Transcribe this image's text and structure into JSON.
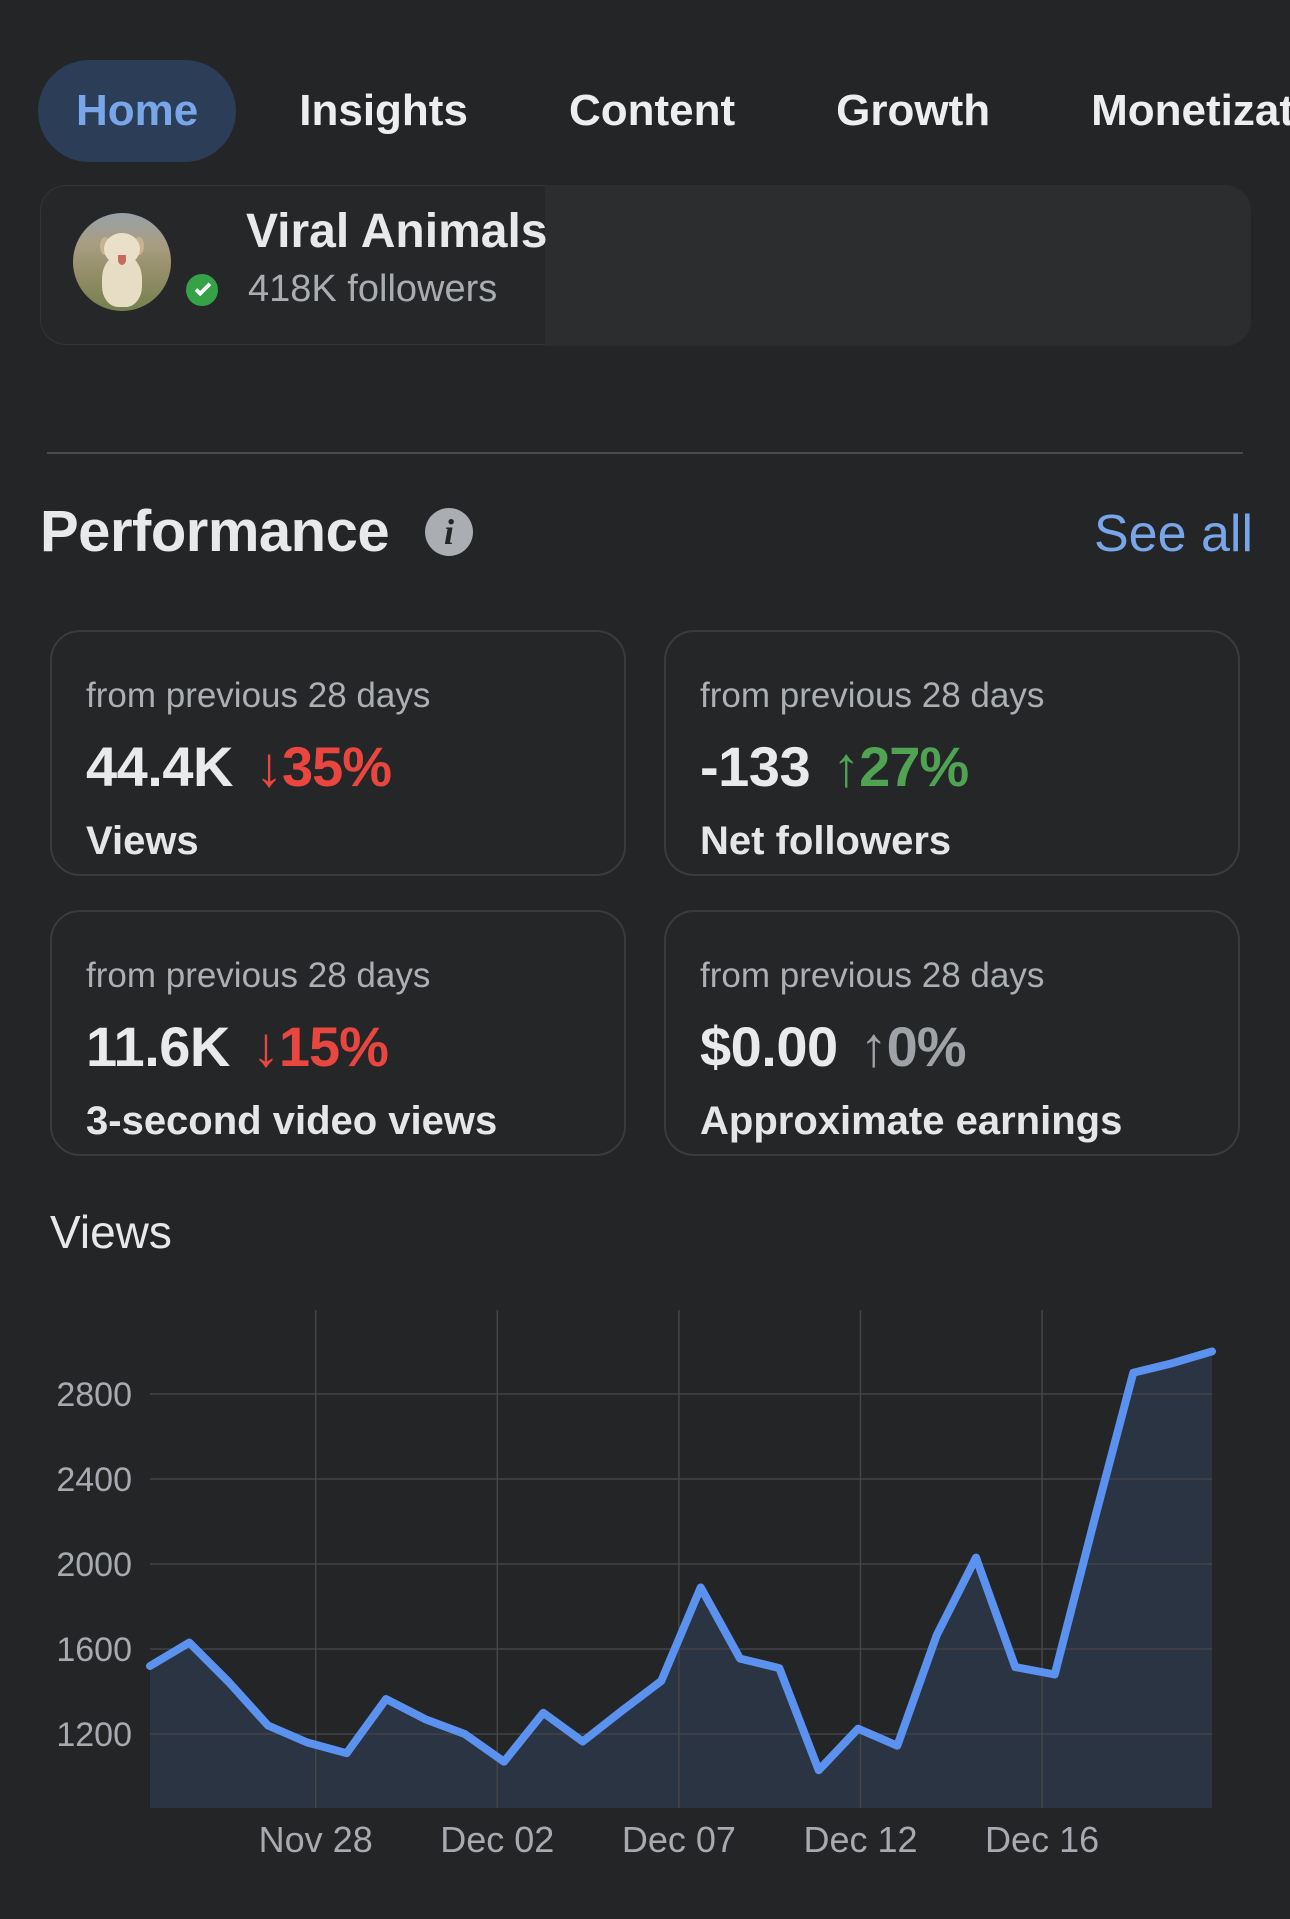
{
  "nav": {
    "tabs": [
      {
        "label": "Home",
        "active": true
      },
      {
        "label": "Insights",
        "active": false
      },
      {
        "label": "Content",
        "active": false
      },
      {
        "label": "Growth",
        "active": false
      },
      {
        "label": "Monetization",
        "active": false
      }
    ]
  },
  "profile": {
    "name": "Viral Animals",
    "followers": "418K followers",
    "avatar": "puppy-photo",
    "badge": "green-check"
  },
  "performance": {
    "title": "Performance",
    "info_icon": "i",
    "see_all": "See all",
    "cards": [
      {
        "period": "from previous 28 days",
        "value": "44.4K",
        "delta": "↓35%",
        "delta_dir": "down",
        "label": "Views"
      },
      {
        "period": "from previous 28 days",
        "value": "-133",
        "delta": "↑27%",
        "delta_dir": "up",
        "label": "Net followers"
      },
      {
        "period": "from previous 28 days",
        "value": "11.6K",
        "delta": "↓15%",
        "delta_dir": "down",
        "label": "3-second video views"
      },
      {
        "period": "from previous 28 days",
        "value": "$0.00",
        "delta": "↑0%",
        "delta_dir": "neutral",
        "label": "Approximate earnings"
      }
    ]
  },
  "chart_section_title": "Views",
  "chart_data": {
    "type": "area",
    "title": "Views",
    "xlabel": "",
    "ylabel": "",
    "series_name": "Views",
    "values": [
      1520,
      1630,
      1445,
      1240,
      1160,
      1110,
      1365,
      1270,
      1200,
      1070,
      1300,
      1165,
      1310,
      1450,
      1890,
      1555,
      1510,
      1030,
      1225,
      1145,
      1665,
      2030,
      1515,
      1480,
      2200,
      2900,
      2945,
      3000
    ],
    "x_tick_labels": [
      "Nov 28",
      "Dec 02",
      "Dec 07",
      "Dec 12",
      "Dec 16"
    ],
    "x_tick_positions": [
      0.156,
      0.327,
      0.498,
      0.669,
      0.84
    ],
    "y_ticks": [
      1200,
      1600,
      2000,
      2400,
      2800
    ],
    "ylim": [
      852,
      3195
    ],
    "grid": true,
    "legend": "none",
    "line_color": "#5b92f0",
    "fill_color": "#2b3442"
  },
  "colors": {
    "background": "#242527",
    "accent_blue": "#79a6e8",
    "active_pill": "#2b3d57",
    "negative": "#e8463f",
    "positive": "#4fa352",
    "neutral_delta": "#9fa3a8",
    "badge_green": "#35a247",
    "chart_line": "#5b92f0",
    "chart_fill": "#2b3442"
  }
}
